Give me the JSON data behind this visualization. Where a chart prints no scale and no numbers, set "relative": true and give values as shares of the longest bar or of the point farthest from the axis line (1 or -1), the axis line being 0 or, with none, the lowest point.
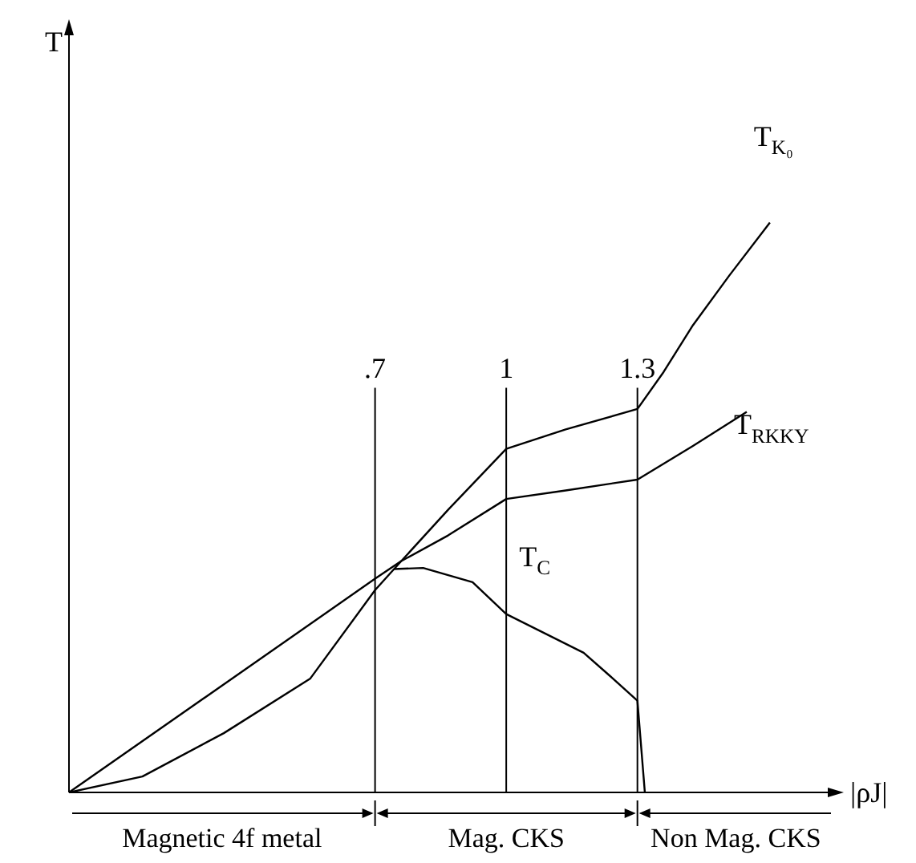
{
  "chart_data": {
    "type": "line",
    "relative": true,
    "xlabel": "|ρJ|",
    "xlim": [
      0,
      1.75
    ],
    "xticks": [
      {
        "value": 0.7,
        "label": ".7"
      },
      1,
      1.3
    ],
    "tick_labels": "x",
    "grid": false,
    "legend": false,
    "marker": "none",
    "line_style": "solid",
    "series": [
      {
        "name": "T$_{K₀}$",
        "color": "#000000",
        "x": [
          0,
          0.168,
          0.354,
          0.552,
          0.7,
          0.76,
          0.867,
          1.0,
          1.136,
          1.3,
          1.36,
          1.427,
          1.51,
          1.603
        ],
        "values": [
          0,
          0.028,
          0.104,
          0.2,
          0.355,
          0.406,
          0.496,
          0.603,
          0.637,
          0.673,
          0.738,
          0.82,
          0.907,
          1.0
        ]
      },
      {
        "name": "T$_{RKKY}$",
        "color": "#000000",
        "x": [
          0,
          0.7,
          0.76,
          0.867,
          1.0,
          1.136,
          1.3,
          1.427,
          1.55
        ],
        "values": [
          0,
          0.375,
          0.406,
          0.451,
          0.515,
          0.53,
          0.549,
          0.608,
          0.668
        ]
      },
      {
        "name": "T$_{C}$",
        "color": "#000000",
        "x": [
          0.743,
          0.81,
          0.923,
          1.0,
          1.177,
          1.232,
          1.3,
          1.317
        ],
        "values": [
          0.392,
          0.394,
          0.369,
          0.313,
          0.245,
          0.208,
          0.161,
          0
        ]
      }
    ],
    "ref_lines": [
      {
        "axis": "x",
        "value": 0.7
      },
      {
        "axis": "x",
        "value": 1
      },
      {
        "axis": "x",
        "value": 1.3
      }
    ],
    "annotations": [
      "T",
      "Magnetic 4f metal",
      "Mag. CKS",
      "Non Mag. CKS"
    ]
  }
}
